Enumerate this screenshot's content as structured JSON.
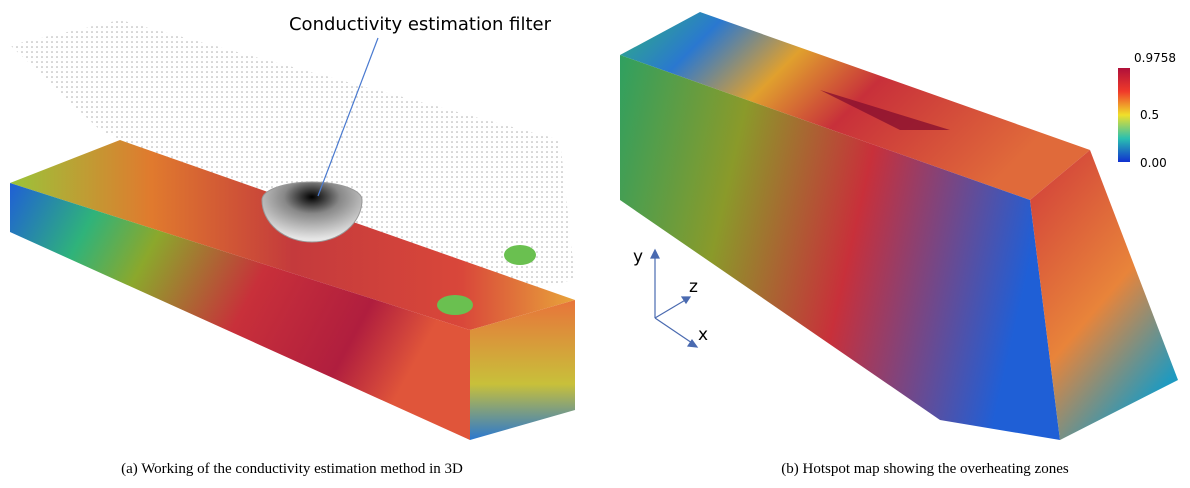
{
  "figure_a": {
    "annotation": "Conductivity estimation filter",
    "caption": "(a) Working of the conductivity estimation method in 3D"
  },
  "figure_b": {
    "colorbar": {
      "max": "0.9758",
      "mid": "0.5",
      "min": "0.00"
    },
    "axes": {
      "y": "y",
      "z": "z",
      "x": "x"
    },
    "caption": "(b) Hotspot map showing the overheating zones"
  }
}
